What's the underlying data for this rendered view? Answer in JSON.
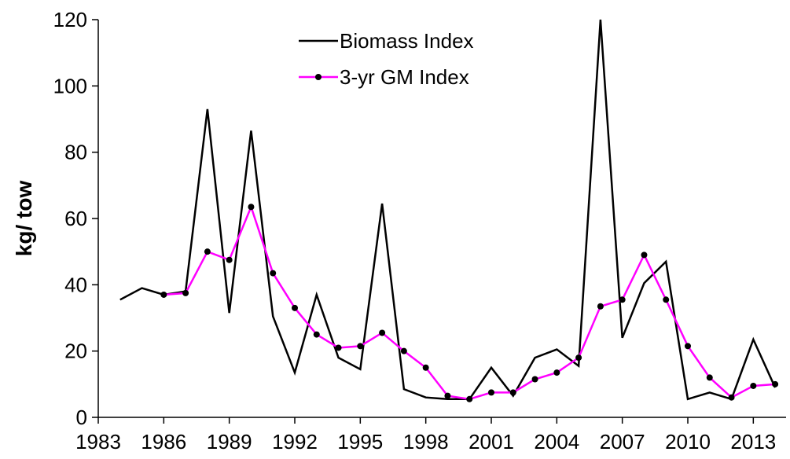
{
  "chart_data": {
    "type": "line",
    "y_label": "kg/ tow",
    "x": [
      1984,
      1985,
      1986,
      1987,
      1988,
      1989,
      1990,
      1991,
      1992,
      1993,
      1994,
      1995,
      1996,
      1997,
      1998,
      1999,
      2000,
      2001,
      2002,
      2003,
      2004,
      2005,
      2006,
      2007,
      2008,
      2009,
      2010,
      2011,
      2012,
      2013,
      2014
    ],
    "series": [
      {
        "name": "Biomass Index",
        "color": "#000000",
        "markers": false,
        "values": [
          35.5,
          39,
          37,
          38,
          93,
          31.5,
          86.5,
          30.5,
          13.5,
          37,
          18,
          14.5,
          64.5,
          8.5,
          6,
          5.5,
          5.5,
          15,
          6.5,
          18,
          20.5,
          15.5,
          120,
          24,
          40.5,
          47,
          5.5,
          7.5,
          5.5,
          23.5,
          9
        ]
      },
      {
        "name": "3-yr GM Index",
        "color": "#ff00ff",
        "markers": true,
        "values": [
          null,
          null,
          37,
          37.5,
          50,
          47.5,
          63.5,
          43.5,
          33,
          25,
          21,
          21.5,
          25.5,
          20,
          15,
          6.5,
          5.5,
          7.5,
          7.5,
          11.5,
          13.5,
          18,
          33.5,
          35.5,
          49,
          35.5,
          21.5,
          12,
          6,
          9.5,
          10
        ]
      }
    ],
    "xlim": [
      1983,
      2014.5
    ],
    "xticks": [
      1983,
      1986,
      1989,
      1992,
      1995,
      1998,
      2001,
      2004,
      2007,
      2010,
      2013
    ],
    "ylim": [
      0,
      120
    ],
    "yticks": [
      0,
      20,
      40,
      60,
      80,
      100,
      120
    ],
    "grid": false,
    "legend": "top"
  }
}
